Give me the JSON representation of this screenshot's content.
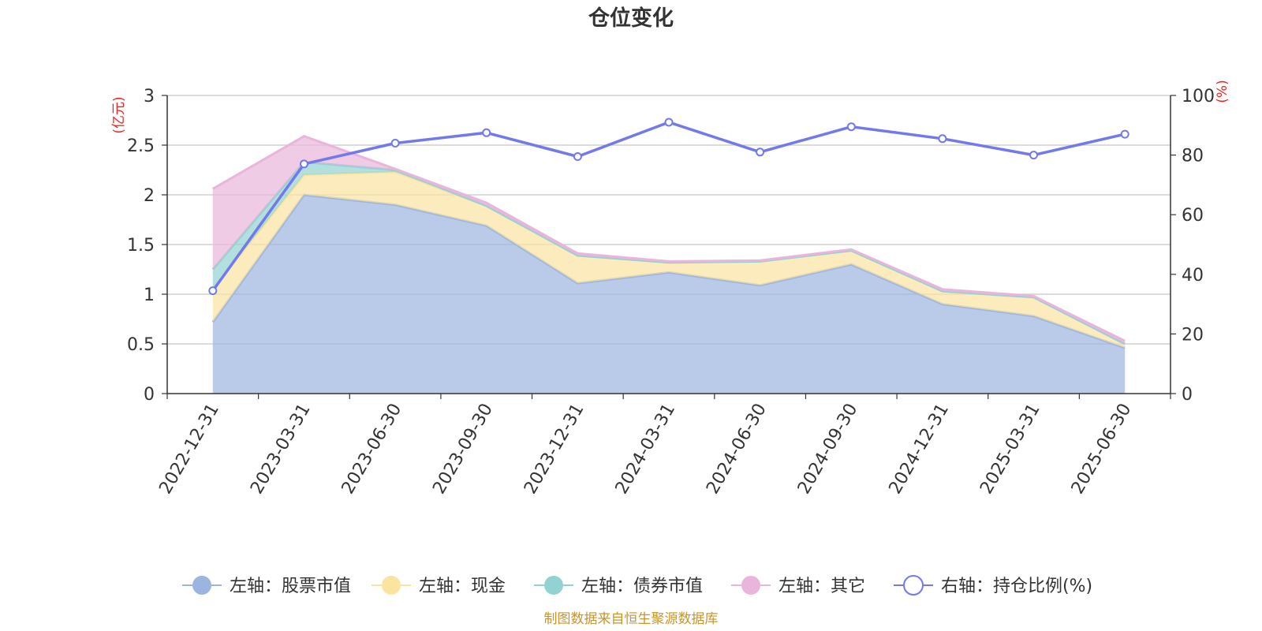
{
  "chart_data": {
    "type": "area",
    "title": "仓位变化",
    "source_note": "制图数据来自恒生聚源数据库",
    "y_left_unit": "(亿元)",
    "y_right_unit": "(%)",
    "categories": [
      "2022-12-31",
      "2023-03-31",
      "2023-06-30",
      "2023-09-30",
      "2023-12-31",
      "2024-03-31",
      "2024-06-30",
      "2024-09-30",
      "2024-12-31",
      "2025-03-31",
      "2025-06-30"
    ],
    "y_left": {
      "min": 0,
      "max": 3,
      "ticks": [
        "0",
        "0.5",
        "1",
        "1.5",
        "2",
        "2.5",
        "3"
      ]
    },
    "y_right": {
      "min": 0,
      "max": 100,
      "ticks": [
        "0",
        "20",
        "40",
        "60",
        "80",
        "100"
      ]
    },
    "grid": true,
    "legend_position": "bottom",
    "series": [
      {
        "name": "左轴：股票市值",
        "axis": "left",
        "kind": "stacked-area",
        "color": "#9bb5e0",
        "values": [
          0.72,
          2.0,
          1.9,
          1.69,
          1.11,
          1.22,
          1.09,
          1.3,
          0.9,
          0.78,
          0.46
        ]
      },
      {
        "name": "左轴：现金",
        "axis": "left",
        "kind": "stacked-area",
        "color": "#fbe3a0",
        "values": [
          0.33,
          0.2,
          0.33,
          0.2,
          0.28,
          0.1,
          0.24,
          0.14,
          0.13,
          0.19,
          0.04
        ]
      },
      {
        "name": "左轴：债券市值",
        "axis": "left",
        "kind": "stacked-area",
        "color": "#93d2d2",
        "values": [
          0.2,
          0.13,
          0.02,
          0,
          0,
          0,
          0,
          0,
          0,
          0,
          0
        ]
      },
      {
        "name": "左轴：其它",
        "axis": "left",
        "kind": "stacked-area",
        "color": "#e9b5dc",
        "values": [
          0.81,
          0.26,
          0.01,
          0.03,
          0.02,
          0.01,
          0.01,
          0.01,
          0.02,
          0.01,
          0.03
        ]
      },
      {
        "name": "右轴：持仓比例(%)",
        "axis": "right",
        "kind": "line",
        "color": "#7179ec",
        "values": [
          34.5,
          77,
          84,
          87.5,
          79.5,
          91,
          81,
          89.5,
          85.5,
          80,
          87
        ]
      }
    ]
  }
}
